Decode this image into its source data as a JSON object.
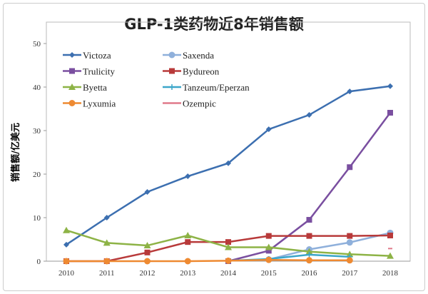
{
  "chart_data": {
    "type": "line",
    "title": "GLP-1类药物近8年销售额",
    "xlabel": "",
    "ylabel": "销售额/亿美元",
    "categories": [
      "2010",
      "2011",
      "2012",
      "2013",
      "2014",
      "2015",
      "2016",
      "2017",
      "2018"
    ],
    "ylim": [
      0,
      50
    ],
    "yticks": [
      0,
      10,
      20,
      30,
      40,
      50
    ],
    "grid": false,
    "legend": "top-left",
    "series": [
      {
        "name": "Victoza",
        "color": "#3c6fb0",
        "marker": "diamond",
        "values": [
          3.8,
          10.0,
          15.9,
          19.5,
          22.5,
          30.3,
          33.6,
          39.0,
          40.2
        ]
      },
      {
        "name": "Saxenda",
        "color": "#8fb0db",
        "marker": "circle",
        "values": [
          null,
          null,
          null,
          null,
          null,
          0.4,
          2.7,
          4.3,
          6.5
        ]
      },
      {
        "name": "Trulicity",
        "color": "#7a4fa0",
        "marker": "square",
        "values": [
          null,
          null,
          null,
          null,
          0.0,
          2.4,
          9.5,
          21.6,
          34.1
        ]
      },
      {
        "name": "Bydureon",
        "color": "#b83a3a",
        "marker": "square",
        "values": [
          0.0,
          0.0,
          2.0,
          4.4,
          4.4,
          5.8,
          5.8,
          5.8,
          5.9
        ]
      },
      {
        "name": "Byetta",
        "color": "#8db346",
        "marker": "triangle",
        "values": [
          7.1,
          4.2,
          3.6,
          5.9,
          3.2,
          3.2,
          2.2,
          1.6,
          1.2
        ]
      },
      {
        "name": "Tanzeum/Eperzan",
        "color": "#3ba6c9",
        "marker": "plus",
        "values": [
          null,
          null,
          null,
          null,
          0.1,
          0.5,
          1.5,
          1.0,
          null
        ]
      },
      {
        "name": "Lyxumia",
        "color": "#ee8a32",
        "marker": "circle",
        "values": [
          0.0,
          0.0,
          0.0,
          0.0,
          0.1,
          0.3,
          0.2,
          0.2,
          null
        ]
      },
      {
        "name": "Ozempic",
        "color": "#e07a8a",
        "marker": "dash",
        "values": [
          null,
          null,
          null,
          null,
          null,
          null,
          null,
          null,
          2.9
        ]
      }
    ]
  }
}
